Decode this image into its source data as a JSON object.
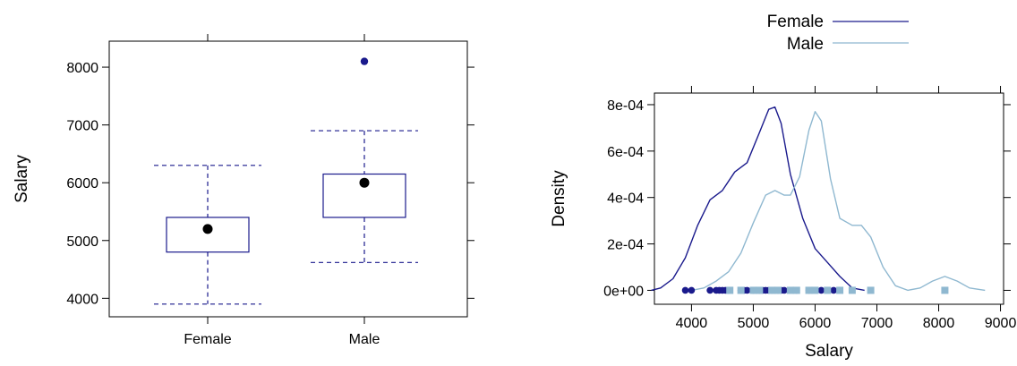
{
  "chart_data": [
    {
      "type": "box",
      "ylabel": "Salary",
      "xlabel": "",
      "categories": [
        "Female",
        "Male"
      ],
      "ylim": [
        3680,
        8450
      ],
      "yticks": [
        "4000",
        "5000",
        "6000",
        "7000",
        "8000"
      ],
      "boxes": [
        {
          "name": "Female",
          "whisker_low": 3900,
          "q1": 4800,
          "median": 5200,
          "q3": 5400,
          "whisker_high": 6300,
          "outliers": []
        },
        {
          "name": "Male",
          "whisker_low": 4620,
          "q1": 5400,
          "median": 6000,
          "q3": 6150,
          "whisker_high": 6900,
          "outliers": [
            8100
          ]
        }
      ],
      "colors": {
        "box": "#1a1a8c",
        "median_dot": "#000000",
        "outlier": "#1a1a8c"
      }
    },
    {
      "type": "line",
      "subtype": "density",
      "xlabel": "Salary",
      "ylabel": "Density",
      "xlim": [
        3400,
        9050
      ],
      "ylim": [
        -6e-05,
        0.00085
      ],
      "xticks": [
        "4000",
        "5000",
        "6000",
        "7000",
        "8000",
        "9000"
      ],
      "yticks": [
        "0e+00",
        "2e-04",
        "4e-04",
        "6e-04",
        "8e-04"
      ],
      "legend_position": "top",
      "series": [
        {
          "name": "Female",
          "color": "#1a1a8c",
          "x": [
            3350,
            3500,
            3700,
            3900,
            4100,
            4300,
            4500,
            4700,
            4900,
            5100,
            5250,
            5350,
            5450,
            5600,
            5800,
            6000,
            6200,
            6400,
            6600,
            6800
          ],
          "y": [
            0.0,
            1e-05,
            5e-05,
            0.00014,
            0.00028,
            0.00039,
            0.00043,
            0.00051,
            0.00055,
            0.00068,
            0.00078,
            0.00079,
            0.00072,
            0.0005,
            0.00031,
            0.00018,
            0.00012,
            6e-05,
            1e-05,
            0.0
          ]
        },
        {
          "name": "Male",
          "color": "#8fb8d0",
          "x": [
            4000,
            4200,
            4400,
            4600,
            4800,
            5000,
            5200,
            5350,
            5500,
            5600,
            5750,
            5900,
            6000,
            6100,
            6250,
            6400,
            6600,
            6750,
            6900,
            7100,
            7300,
            7500,
            7700,
            7900,
            8100,
            8300,
            8500,
            8750
          ],
          "y": [
            0.0,
            1e-05,
            4e-05,
            8e-05,
            0.00016,
            0.00029,
            0.00041,
            0.00043,
            0.00041,
            0.00041,
            0.00049,
            0.00069,
            0.00077,
            0.00073,
            0.00048,
            0.00031,
            0.00028,
            0.00028,
            0.00023,
            0.0001,
            2e-05,
            0.0,
            1e-05,
            4e-05,
            6e-05,
            4e-05,
            1e-05,
            0.0
          ]
        }
      ],
      "rug": [
        {
          "name": "Female",
          "marker": "circle",
          "color": "#1a1a8c",
          "x": [
            3900,
            4000,
            4300,
            4400,
            4450,
            4500,
            4550,
            4600,
            4800,
            4850,
            4900,
            5000,
            5050,
            5100,
            5150,
            5200,
            5250,
            5300,
            5350,
            5400,
            5450,
            5500,
            5700,
            5900,
            6100,
            6300
          ]
        },
        {
          "name": "Male",
          "marker": "square",
          "color": "#8fb8d0",
          "x": [
            4620,
            4800,
            5000,
            5100,
            5300,
            5400,
            5600,
            5700,
            5900,
            6000,
            6200,
            6400,
            6600,
            6900,
            8100
          ]
        }
      ]
    }
  ]
}
